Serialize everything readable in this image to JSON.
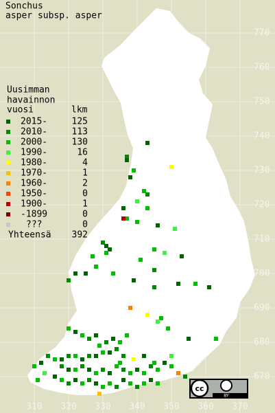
{
  "title": [
    "Sonchus",
    "asper subsp. asper"
  ],
  "legend": {
    "header": [
      "Uusimman",
      "havainnon"
    ],
    "col_year": "vuosi",
    "col_count": "lkm",
    "rows": [
      {
        "label": "2015-",
        "count": 125,
        "color": "#006400"
      },
      {
        "label": "2010-",
        "count": 113,
        "color": "#008c00"
      },
      {
        "label": "2000-",
        "count": 130,
        "color": "#00c000"
      },
      {
        "label": "1990-",
        "count": 16,
        "color": "#40f040"
      },
      {
        "label": "1980-",
        "count": 4,
        "color": "#ffff00"
      },
      {
        "label": "1970-",
        "count": 1,
        "color": "#ffc000"
      },
      {
        "label": "1960-",
        "count": 2,
        "color": "#ff8000"
      },
      {
        "label": "1950-",
        "count": 0,
        "color": "#ff4000"
      },
      {
        "label": "1900-",
        "count": 1,
        "color": "#c00000"
      },
      {
        "label": "-1899",
        "count": 0,
        "color": "#800000"
      },
      {
        "label": "???",
        "count": 0,
        "color": "#c8c8c8"
      }
    ],
    "total_label": "Yhteensä",
    "total": 392
  },
  "yticks": [
    770,
    760,
    750,
    740,
    730,
    720,
    710,
    700,
    690,
    680,
    670
  ],
  "xticks": [
    310,
    320,
    330,
    340,
    350,
    360,
    370
  ],
  "license": {
    "cc": "cc",
    "by": "BY"
  },
  "squares": [
    [
      343,
      738,
      0
    ],
    [
      337,
      734,
      1
    ],
    [
      337,
      733,
      0
    ],
    [
      350,
      731,
      4
    ],
    [
      339,
      730,
      2
    ],
    [
      338,
      728,
      0
    ],
    [
      342,
      724,
      2
    ],
    [
      343,
      723,
      1
    ],
    [
      340,
      721,
      3
    ],
    [
      336,
      719,
      0
    ],
    [
      343,
      719,
      2
    ],
    [
      337,
      716,
      2
    ],
    [
      336,
      716,
      8
    ],
    [
      340,
      715,
      2
    ],
    [
      346,
      714,
      0
    ],
    [
      351,
      713,
      3
    ],
    [
      330,
      709,
      1
    ],
    [
      331,
      708,
      0
    ],
    [
      332,
      707,
      0
    ],
    [
      331,
      706,
      2
    ],
    [
      345,
      707,
      2
    ],
    [
      341,
      704,
      2
    ],
    [
      348,
      706,
      3
    ],
    [
      353,
      705,
      0
    ],
    [
      327,
      705,
      2
    ],
    [
      328,
      702,
      2
    ],
    [
      325,
      700,
      0
    ],
    [
      333,
      700,
      2
    ],
    [
      339,
      698,
      0
    ],
    [
      345,
      696,
      1
    ],
    [
      352,
      697,
      0
    ],
    [
      357,
      697,
      2
    ],
    [
      361,
      696,
      0
    ],
    [
      322,
      700,
      0
    ],
    [
      320,
      698,
      1
    ],
    [
      345,
      701,
      1
    ],
    [
      338,
      690,
      6
    ],
    [
      347,
      687,
      2
    ],
    [
      343,
      688,
      4
    ],
    [
      346,
      686,
      3
    ],
    [
      349,
      684,
      2
    ],
    [
      355,
      681,
      0
    ],
    [
      363,
      681,
      2
    ],
    [
      337,
      682,
      2
    ],
    [
      320,
      684,
      2
    ],
    [
      322,
      683,
      0
    ],
    [
      324,
      682,
      2
    ],
    [
      326,
      681,
      1
    ],
    [
      328,
      682,
      0
    ],
    [
      329,
      679,
      2
    ],
    [
      331,
      680,
      1
    ],
    [
      333,
      681,
      0
    ],
    [
      335,
      680,
      2
    ],
    [
      334,
      678,
      1
    ],
    [
      332,
      677,
      0
    ],
    [
      330,
      677,
      2
    ],
    [
      328,
      676,
      0
    ],
    [
      326,
      676,
      1
    ],
    [
      324,
      675,
      0
    ],
    [
      322,
      676,
      2
    ],
    [
      320,
      676,
      1
    ],
    [
      318,
      675,
      0
    ],
    [
      316,
      675,
      2
    ],
    [
      314,
      676,
      1
    ],
    [
      312,
      674,
      0
    ],
    [
      310,
      673,
      2
    ],
    [
      318,
      673,
      1
    ],
    [
      320,
      672,
      0
    ],
    [
      322,
      672,
      2
    ],
    [
      324,
      673,
      1
    ],
    [
      326,
      672,
      0
    ],
    [
      328,
      671,
      2
    ],
    [
      330,
      672,
      1
    ],
    [
      332,
      671,
      0
    ],
    [
      334,
      673,
      2
    ],
    [
      336,
      672,
      1
    ],
    [
      338,
      671,
      2
    ],
    [
      340,
      672,
      0
    ],
    [
      342,
      671,
      2
    ],
    [
      344,
      673,
      1
    ],
    [
      346,
      672,
      2
    ],
    [
      348,
      674,
      0
    ],
    [
      350,
      673,
      2
    ],
    [
      352,
      671,
      6
    ],
    [
      354,
      670,
      1
    ],
    [
      316,
      670,
      0
    ],
    [
      318,
      669,
      2
    ],
    [
      320,
      668,
      1
    ],
    [
      322,
      669,
      0
    ],
    [
      324,
      668,
      2
    ],
    [
      326,
      669,
      1
    ],
    [
      328,
      668,
      0
    ],
    [
      330,
      667,
      2
    ],
    [
      332,
      668,
      2
    ],
    [
      334,
      667,
      1
    ],
    [
      336,
      669,
      0
    ],
    [
      338,
      668,
      2
    ],
    [
      340,
      667,
      1
    ],
    [
      342,
      668,
      2
    ],
    [
      344,
      669,
      0
    ],
    [
      346,
      668,
      2
    ],
    [
      329,
      665,
      5
    ],
    [
      339,
      675,
      4
    ],
    [
      336,
      676,
      1
    ],
    [
      342,
      676,
      0
    ],
    [
      345,
      674,
      2
    ],
    [
      350,
      676,
      3
    ],
    [
      313,
      671,
      3
    ],
    [
      311,
      669,
      2
    ],
    [
      335,
      674,
      2
    ]
  ]
}
